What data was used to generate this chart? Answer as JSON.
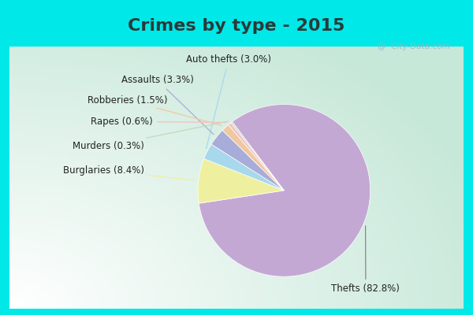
{
  "title": "Crimes by type - 2015",
  "slices": [
    {
      "label": "Thefts",
      "pct": 82.8,
      "color": "#C4A8D4"
    },
    {
      "label": "Burglaries",
      "pct": 8.4,
      "color": "#EEF0A0"
    },
    {
      "label": "Auto thefts",
      "pct": 3.0,
      "color": "#A8D8EC"
    },
    {
      "label": "Assaults",
      "pct": 3.3,
      "color": "#A8ACD8"
    },
    {
      "label": "Robberies",
      "pct": 1.5,
      "color": "#F0C8A0"
    },
    {
      "label": "Rapes",
      "pct": 0.6,
      "color": "#F0C0C4"
    },
    {
      "label": "Murders",
      "pct": 0.3,
      "color": "#C4D8C0"
    }
  ],
  "border_color": "#00E8E8",
  "border_width": 8,
  "title_bg": "#00E8E8",
  "title_color": "#2A3A3A",
  "title_fontsize": 16,
  "label_fontsize": 8.5,
  "watermark": "@  City-Data.com",
  "watermark_color": "#90B8C8"
}
